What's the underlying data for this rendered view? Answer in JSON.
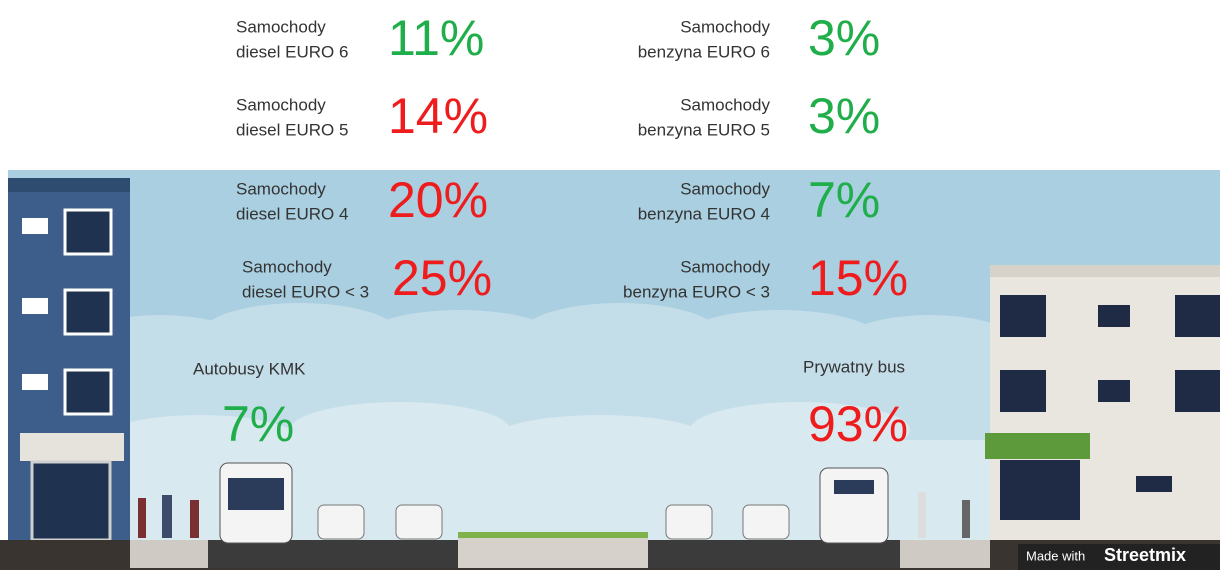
{
  "items": [
    {
      "label": [
        "Samochody",
        "diesel EURO 6"
      ],
      "value": "11%",
      "color": "#1fae4a"
    },
    {
      "label": [
        "Samochody",
        "diesel EURO 5"
      ],
      "value": "14%",
      "color": "#ee1c1c"
    },
    {
      "label": [
        "Samochody",
        "diesel EURO 4"
      ],
      "value": "20%",
      "color": "#ee1c1c"
    },
    {
      "label": [
        "Samochody",
        "diesel EURO < 3"
      ],
      "value": "25%",
      "color": "#ee1c1c"
    },
    {
      "label": [
        "Samochody",
        "benzyna EURO 6"
      ],
      "value": "3%",
      "color": "#1fae4a"
    },
    {
      "label": [
        "Samochody",
        "benzyna EURO 5"
      ],
      "value": "3%",
      "color": "#1fae4a"
    },
    {
      "label": [
        "Samochody",
        "benzyna EURO 4"
      ],
      "value": "7%",
      "color": "#1fae4a"
    },
    {
      "label": [
        "Samochody",
        "benzyna EURO < 3"
      ],
      "value": "15%",
      "color": "#ee1c1c"
    }
  ],
  "buses": [
    {
      "label": "Autobusy KMK",
      "value": "7%",
      "color": "#1fae4a"
    },
    {
      "label": "Prywatny bus",
      "value": "93%",
      "color": "#ee1c1c"
    }
  ],
  "footer": {
    "prefix": "Made with",
    "brand": "Streetmix"
  }
}
